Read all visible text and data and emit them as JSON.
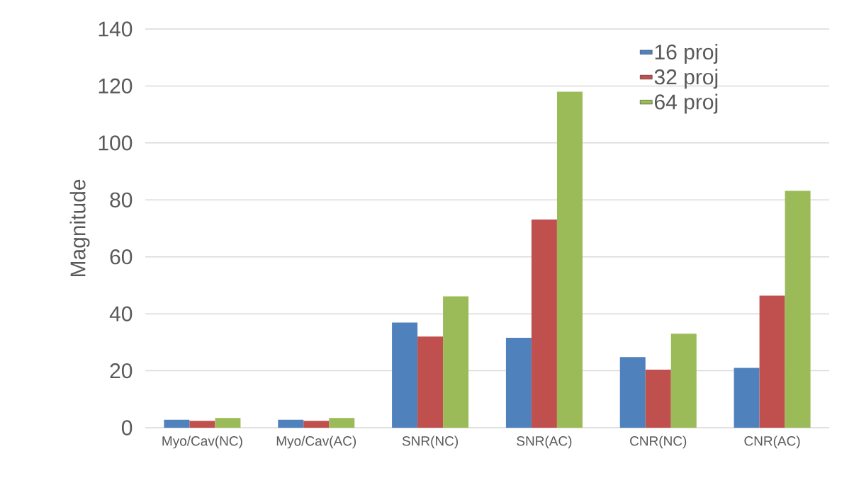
{
  "chart_data": {
    "type": "bar",
    "ylabel": "Magnitude",
    "categories": [
      "Myo/Cav(NC)",
      "Myo/Cav(AC)",
      "SNR(NC)",
      "SNR(AC)",
      "CNR(NC)",
      "CNR(AC)"
    ],
    "series": [
      {
        "name": "16 proj",
        "color": "#4f81bd",
        "values": [
          2.8,
          2.8,
          36.9,
          31.6,
          24.8,
          21.0
        ]
      },
      {
        "name": "32 proj",
        "color": "#c0504d",
        "values": [
          2.4,
          2.4,
          32.0,
          73.1,
          20.4,
          46.4
        ]
      },
      {
        "name": "64 proj",
        "color": "#9bbb59",
        "values": [
          3.4,
          3.4,
          46.1,
          118.0,
          33.0,
          83.2
        ]
      }
    ],
    "ylim": [
      0,
      140
    ],
    "yticks": [
      0,
      20,
      40,
      60,
      80,
      100,
      120,
      140
    ],
    "grid": "y",
    "legend": "top right"
  }
}
